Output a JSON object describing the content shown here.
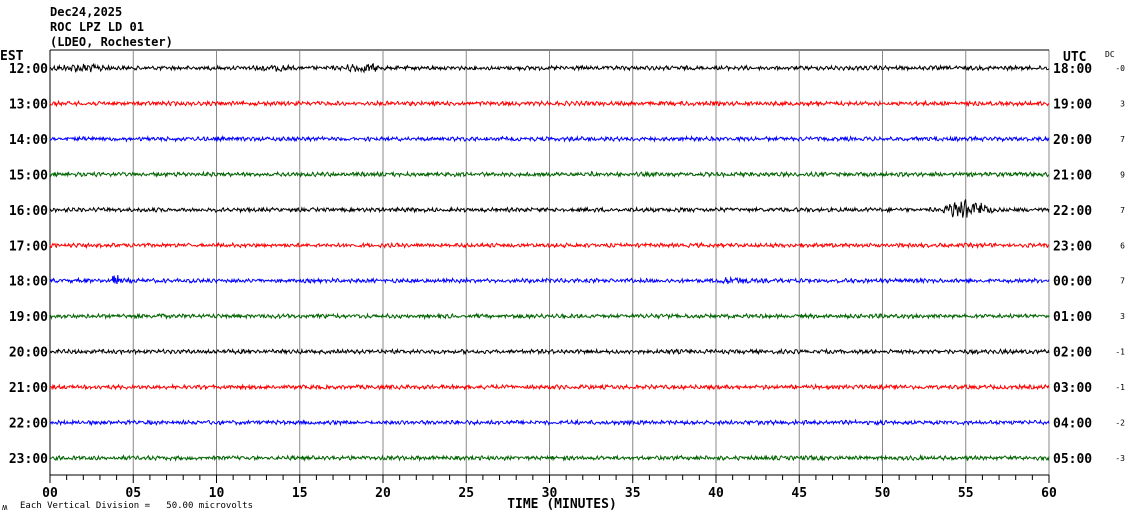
{
  "header": {
    "date": "Dec24,2025",
    "station": "ROC LPZ LD 01",
    "network": "(LDEO, Rochester)"
  },
  "chart_data": {
    "type": "line",
    "title": "Dec24,2025 ROC LPZ LD 01 (LDEO, Rochester)",
    "left_axis_label": "EST",
    "right_axis_label": "UTC",
    "dc_label": "DC",
    "xlabel": "TIME (MINUTES)",
    "xlim": [
      0,
      60
    ],
    "x_ticks": [
      "00",
      "05",
      "10",
      "15",
      "20",
      "25",
      "30",
      "35",
      "40",
      "45",
      "50",
      "55",
      "60"
    ],
    "minor_tick_step": 1,
    "grid": "vertical every 5 minutes",
    "scale_note": "Each Vertical Division =   50.00 microvolts",
    "corner_mark": "ʍ",
    "rows": [
      {
        "est": "12:00",
        "utc": "18:00",
        "dc": "-0",
        "color": "#000000",
        "bursts": [
          [
            0,
            6,
            2.2
          ],
          [
            12,
            16,
            2.0
          ],
          [
            17.5,
            21.5,
            2.6
          ]
        ]
      },
      {
        "est": "13:00",
        "utc": "19:00",
        "dc": "3",
        "color": "#ff0000",
        "bursts": []
      },
      {
        "est": "14:00",
        "utc": "20:00",
        "dc": "7",
        "color": "#0000ff",
        "bursts": []
      },
      {
        "est": "15:00",
        "utc": "21:00",
        "dc": "9",
        "color": "#006400",
        "bursts": [
          [
            32.5,
            33,
            2.0
          ]
        ]
      },
      {
        "est": "16:00",
        "utc": "22:00",
        "dc": "7",
        "color": "#000000",
        "bursts": [
          [
            53.5,
            58.5,
            6.0
          ]
        ]
      },
      {
        "est": "17:00",
        "utc": "23:00",
        "dc": "6",
        "color": "#ff0000",
        "bursts": []
      },
      {
        "est": "18:00",
        "utc": "00:00",
        "dc": "7",
        "color": "#0000ff",
        "bursts": [
          [
            3.5,
            5,
            3.0
          ],
          [
            40,
            43.5,
            2.2
          ]
        ]
      },
      {
        "est": "19:00",
        "utc": "01:00",
        "dc": "3",
        "color": "#006400",
        "bursts": [
          [
            6.5,
            7,
            2.2
          ]
        ]
      },
      {
        "est": "20:00",
        "utc": "02:00",
        "dc": "-1",
        "color": "#000000",
        "bursts": []
      },
      {
        "est": "21:00",
        "utc": "03:00",
        "dc": "-1",
        "color": "#ff0000",
        "bursts": []
      },
      {
        "est": "22:00",
        "utc": "04:00",
        "dc": "-2",
        "color": "#0000ff",
        "bursts": [
          [
            49.5,
            50,
            1.8
          ]
        ]
      },
      {
        "est": "23:00",
        "utc": "05:00",
        "dc": "-3",
        "color": "#006400",
        "bursts": []
      }
    ]
  }
}
